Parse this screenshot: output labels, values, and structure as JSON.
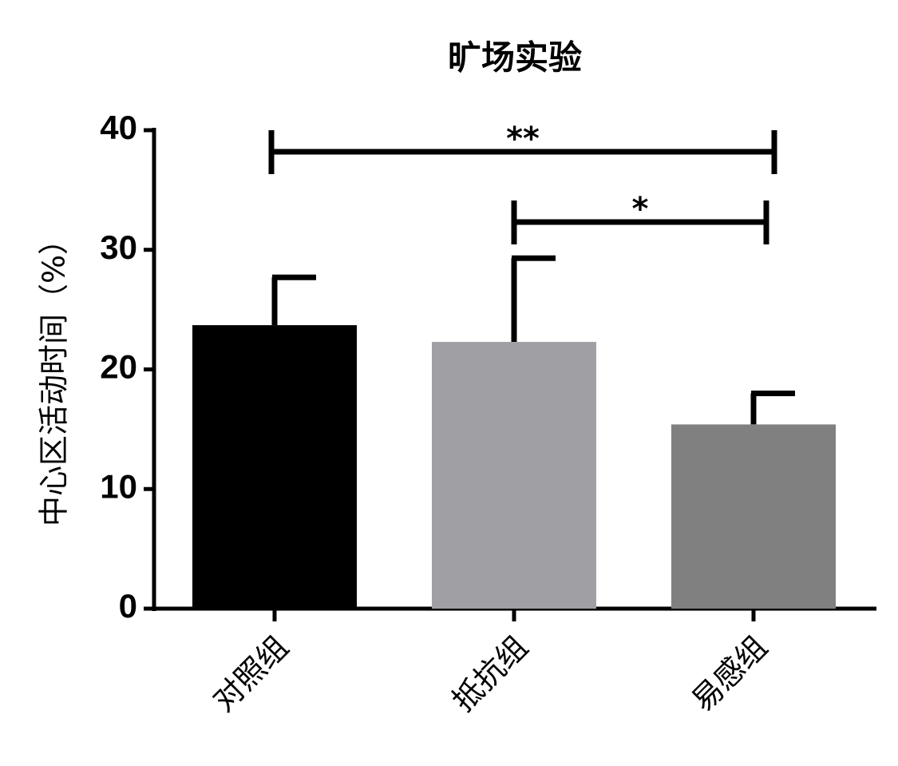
{
  "chart_data": {
    "type": "bar",
    "title": "旷场实验",
    "y_label": "中心区活动时间（%）",
    "categories": [
      "对照组",
      "抵抗组",
      "易感组"
    ],
    "values": [
      23.7,
      22.3,
      15.4
    ],
    "errors": [
      4.0,
      7.0,
      2.6
    ],
    "colors": [
      "#000000",
      "#a0a0a4",
      "#808080"
    ],
    "ylim": [
      0,
      40
    ],
    "yticks": [
      0,
      10,
      20,
      30,
      40
    ],
    "annotations": [
      {
        "text": "**",
        "from": 0,
        "to": 2
      },
      {
        "text": "*",
        "from": 1,
        "to": 2
      }
    ]
  }
}
